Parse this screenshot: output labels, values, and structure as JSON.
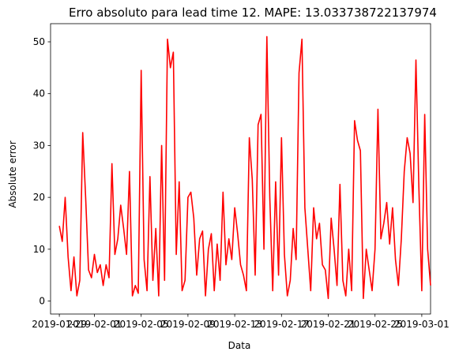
{
  "chart_data": {
    "type": "line",
    "title": "Erro absoluto para lead time 12. MAPE: 13.033738722137974",
    "xlabel": "Data",
    "ylabel": "Absolute error",
    "x_ticks": [
      "2019-01-29",
      "2019-02-01",
      "2019-02-05",
      "2019-02-09",
      "2019-02-13",
      "2019-02-17",
      "2019-02-21",
      "2019-02-25",
      "2019-03-01"
    ],
    "y_ticks": [
      "0",
      "10",
      "20",
      "30",
      "40",
      "50"
    ],
    "xlim": [
      "2019-01-28T06:00",
      "2019-03-01T18:00"
    ],
    "ylim": [
      -2.5,
      53.5
    ],
    "grid": false,
    "legend": "none",
    "series": [
      {
        "color": "#ff0000",
        "points": [
          [
            "2019-01-29T00:00",
            14.5
          ],
          [
            "2019-01-29T06:00",
            11.5
          ],
          [
            "2019-01-29T12:00",
            20
          ],
          [
            "2019-01-29T18:00",
            8.5
          ],
          [
            "2019-01-30T00:00",
            2
          ],
          [
            "2019-01-30T06:00",
            8.5
          ],
          [
            "2019-01-30T12:00",
            1
          ],
          [
            "2019-01-30T18:00",
            4
          ],
          [
            "2019-01-31T00:00",
            32.5
          ],
          [
            "2019-01-31T06:00",
            20
          ],
          [
            "2019-01-31T12:00",
            6
          ],
          [
            "2019-01-31T18:00",
            4.5
          ],
          [
            "2019-02-01T00:00",
            9
          ],
          [
            "2019-02-01T06:00",
            5.5
          ],
          [
            "2019-02-01T12:00",
            7
          ],
          [
            "2019-02-01T18:00",
            3
          ],
          [
            "2019-02-02T00:00",
            7
          ],
          [
            "2019-02-02T06:00",
            4.5
          ],
          [
            "2019-02-02T12:00",
            26.5
          ],
          [
            "2019-02-02T18:00",
            9
          ],
          [
            "2019-02-03T00:00",
            12
          ],
          [
            "2019-02-03T06:00",
            18.5
          ],
          [
            "2019-02-03T12:00",
            14
          ],
          [
            "2019-02-03T18:00",
            9
          ],
          [
            "2019-02-04T00:00",
            25
          ],
          [
            "2019-02-04T06:00",
            1
          ],
          [
            "2019-02-04T12:00",
            3
          ],
          [
            "2019-02-04T18:00",
            1.5
          ],
          [
            "2019-02-05T00:00",
            44.5
          ],
          [
            "2019-02-05T06:00",
            8
          ],
          [
            "2019-02-05T12:00",
            2
          ],
          [
            "2019-02-05T18:00",
            24
          ],
          [
            "2019-02-06T00:00",
            4
          ],
          [
            "2019-02-06T06:00",
            14
          ],
          [
            "2019-02-06T12:00",
            1
          ],
          [
            "2019-02-06T18:00",
            30
          ],
          [
            "2019-02-07T00:00",
            4
          ],
          [
            "2019-02-07T06:00",
            50.5
          ],
          [
            "2019-02-07T12:00",
            45
          ],
          [
            "2019-02-07T18:00",
            48
          ],
          [
            "2019-02-08T00:00",
            9
          ],
          [
            "2019-02-08T06:00",
            23
          ],
          [
            "2019-02-08T12:00",
            2
          ],
          [
            "2019-02-08T18:00",
            4
          ],
          [
            "2019-02-09T00:00",
            20
          ],
          [
            "2019-02-09T06:00",
            21
          ],
          [
            "2019-02-09T12:00",
            16
          ],
          [
            "2019-02-09T18:00",
            5
          ],
          [
            "2019-02-10T00:00",
            12
          ],
          [
            "2019-02-10T06:00",
            13.5
          ],
          [
            "2019-02-10T12:00",
            1
          ],
          [
            "2019-02-10T18:00",
            10
          ],
          [
            "2019-02-11T00:00",
            13
          ],
          [
            "2019-02-11T06:00",
            2
          ],
          [
            "2019-02-11T12:00",
            11
          ],
          [
            "2019-02-11T18:00",
            4
          ],
          [
            "2019-02-12T00:00",
            21
          ],
          [
            "2019-02-12T06:00",
            7
          ],
          [
            "2019-02-12T12:00",
            12
          ],
          [
            "2019-02-12T18:00",
            8
          ],
          [
            "2019-02-13T00:00",
            18
          ],
          [
            "2019-02-13T06:00",
            13
          ],
          [
            "2019-02-13T12:00",
            7
          ],
          [
            "2019-02-13T18:00",
            5
          ],
          [
            "2019-02-14T00:00",
            2
          ],
          [
            "2019-02-14T06:00",
            31.5
          ],
          [
            "2019-02-14T12:00",
            23.5
          ],
          [
            "2019-02-14T18:00",
            5
          ],
          [
            "2019-02-15T00:00",
            34
          ],
          [
            "2019-02-15T06:00",
            36
          ],
          [
            "2019-02-15T12:00",
            10
          ],
          [
            "2019-02-15T18:00",
            51
          ],
          [
            "2019-02-16T00:00",
            20
          ],
          [
            "2019-02-16T06:00",
            2
          ],
          [
            "2019-02-16T12:00",
            23
          ],
          [
            "2019-02-16T18:00",
            5
          ],
          [
            "2019-02-17T00:00",
            31.5
          ],
          [
            "2019-02-17T06:00",
            9
          ],
          [
            "2019-02-17T12:00",
            1
          ],
          [
            "2019-02-17T18:00",
            4
          ],
          [
            "2019-02-18T00:00",
            14
          ],
          [
            "2019-02-18T06:00",
            8
          ],
          [
            "2019-02-18T12:00",
            44
          ],
          [
            "2019-02-18T18:00",
            50.5
          ],
          [
            "2019-02-19T00:00",
            18
          ],
          [
            "2019-02-19T06:00",
            10
          ],
          [
            "2019-02-19T12:00",
            2
          ],
          [
            "2019-02-19T18:00",
            18
          ],
          [
            "2019-02-20T00:00",
            12
          ],
          [
            "2019-02-20T06:00",
            15
          ],
          [
            "2019-02-20T12:00",
            7
          ],
          [
            "2019-02-20T18:00",
            6
          ],
          [
            "2019-02-21T00:00",
            0.5
          ],
          [
            "2019-02-21T06:00",
            16
          ],
          [
            "2019-02-21T12:00",
            10
          ],
          [
            "2019-02-21T18:00",
            3
          ],
          [
            "2019-02-22T00:00",
            22.5
          ],
          [
            "2019-02-22T06:00",
            4
          ],
          [
            "2019-02-22T12:00",
            1
          ],
          [
            "2019-02-22T18:00",
            10
          ],
          [
            "2019-02-23T00:00",
            2
          ],
          [
            "2019-02-23T06:00",
            34.8
          ],
          [
            "2019-02-23T12:00",
            31
          ],
          [
            "2019-02-23T18:00",
            29
          ],
          [
            "2019-02-24T00:00",
            0.5
          ],
          [
            "2019-02-24T06:00",
            10
          ],
          [
            "2019-02-24T12:00",
            6
          ],
          [
            "2019-02-24T18:00",
            2
          ],
          [
            "2019-02-25T00:00",
            10
          ],
          [
            "2019-02-25T06:00",
            37
          ],
          [
            "2019-02-25T12:00",
            12
          ],
          [
            "2019-02-25T18:00",
            15
          ],
          [
            "2019-02-26T00:00",
            19
          ],
          [
            "2019-02-26T06:00",
            11
          ],
          [
            "2019-02-26T12:00",
            18
          ],
          [
            "2019-02-26T18:00",
            8
          ],
          [
            "2019-02-27T00:00",
            3
          ],
          [
            "2019-02-27T06:00",
            12
          ],
          [
            "2019-02-27T12:00",
            25
          ],
          [
            "2019-02-27T18:00",
            31.5
          ],
          [
            "2019-02-28T00:00",
            28.5
          ],
          [
            "2019-02-28T06:00",
            19
          ],
          [
            "2019-02-28T12:00",
            46.5
          ],
          [
            "2019-02-28T18:00",
            22
          ],
          [
            "2019-03-01T00:00",
            2
          ],
          [
            "2019-03-01T06:00",
            36
          ],
          [
            "2019-03-01T12:00",
            10
          ],
          [
            "2019-03-01T18:00",
            3
          ]
        ]
      }
    ]
  }
}
